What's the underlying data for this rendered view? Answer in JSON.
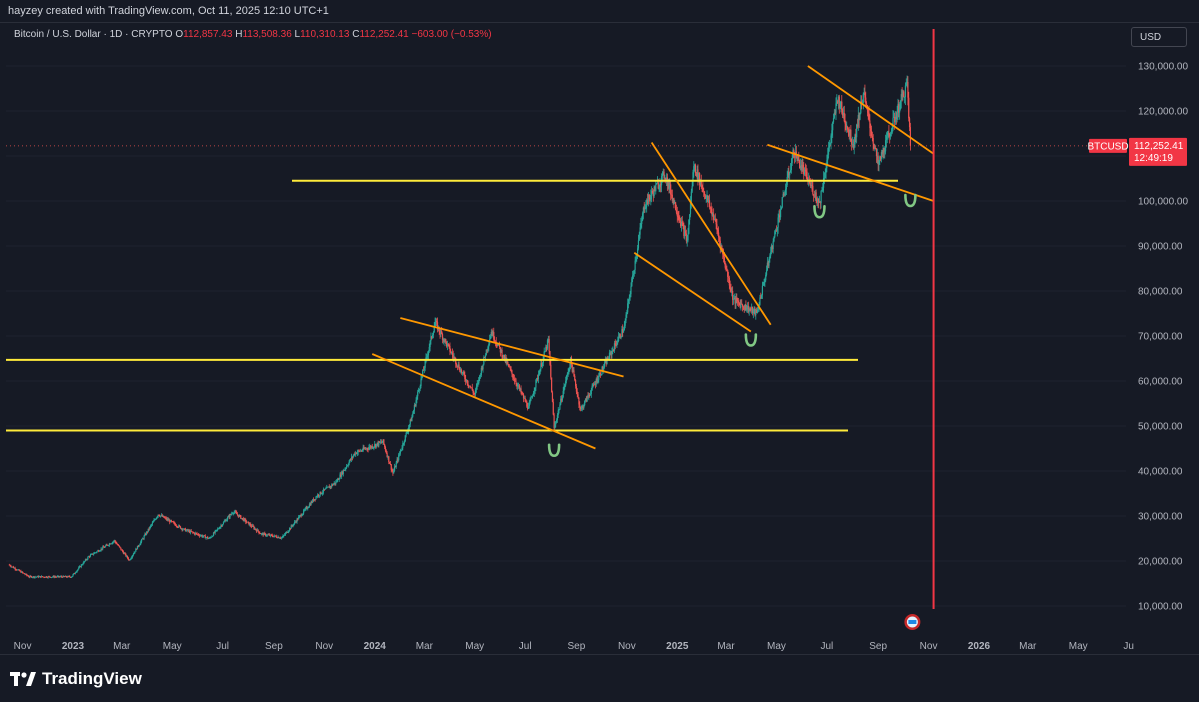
{
  "header": {
    "attribution": "hayzey created with TradingView.com, Oct 11, 2025 12:10 UTC+1"
  },
  "legend": {
    "symbol": "Bitcoin / U.S. Dollar · 1D · CRYPTO",
    "open_key": "O",
    "open": "112,857.43",
    "high_key": "H",
    "high": "113,508.36",
    "low_key": "L",
    "low": "110,310.13",
    "close_key": "C",
    "close": "112,252.41",
    "change": "−603.00 (−0.53%)"
  },
  "currency_button": "USD",
  "price_badge": {
    "ticker": "BTCUSD",
    "price": "112,252.41",
    "countdown": "12:49:19"
  },
  "footer": {
    "brand": "TradingView"
  },
  "colors": {
    "background": "#161a25",
    "up": "#26a69a",
    "down": "#ef5350",
    "support_line": "#ffeb3b",
    "channel_line": "#ff9800",
    "bounce_mark": "#81c784",
    "vertical_marker": "#f23645"
  },
  "chart_data": {
    "type": "candlestick",
    "symbol": "Bitcoin / U.S. Dollar",
    "interval": "1D",
    "y_ticks": [
      "130,000.00",
      "120,000.00",
      "110,000.00",
      "100,000.00",
      "90,000.00",
      "80,000.00",
      "70,000.00",
      "60,000.00",
      "50,000.00",
      "40,000.00",
      "30,000.00",
      "20,000.00",
      "10,000.00"
    ],
    "x_ticks": [
      "Nov",
      "2023",
      "Mar",
      "May",
      "Jul",
      "Sep",
      "Nov",
      "2024",
      "Mar",
      "May",
      "Jul",
      "Sep",
      "Nov",
      "2025",
      "Mar",
      "May",
      "Jul",
      "Sep",
      "Nov",
      "2026",
      "Mar",
      "May",
      "Ju"
    ],
    "ylim": [
      7000,
      135000
    ],
    "last_price": 112252.41,
    "price_path": [
      [
        "2022-10-15",
        19200
      ],
      [
        "2022-11-09",
        16500
      ],
      [
        "2022-12-30",
        16500
      ],
      [
        "2023-01-20",
        21000
      ],
      [
        "2023-02-20",
        24500
      ],
      [
        "2023-03-10",
        20200
      ],
      [
        "2023-04-14",
        30400
      ],
      [
        "2023-05-15",
        27000
      ],
      [
        "2023-06-15",
        25000
      ],
      [
        "2023-07-14",
        31000
      ],
      [
        "2023-08-17",
        26000
      ],
      [
        "2023-09-11",
        25200
      ],
      [
        "2023-10-23",
        34500
      ],
      [
        "2023-11-15",
        37500
      ],
      [
        "2023-12-08",
        44000
      ],
      [
        "2024-01-11",
        46500
      ],
      [
        "2024-01-23",
        39500
      ],
      [
        "2024-02-15",
        52000
      ],
      [
        "2024-03-14",
        73000
      ],
      [
        "2024-04-15",
        62000
      ],
      [
        "2024-05-01",
        57000
      ],
      [
        "2024-05-21",
        71000
      ],
      [
        "2024-07-05",
        54000
      ],
      [
        "2024-07-29",
        69000
      ],
      [
        "2024-08-05",
        49500
      ],
      [
        "2024-08-25",
        64500
      ],
      [
        "2024-09-06",
        53500
      ],
      [
        "2024-10-15",
        67000
      ],
      [
        "2024-10-29",
        72000
      ],
      [
        "2024-11-22",
        99000
      ],
      [
        "2024-12-17",
        106000
      ],
      [
        "2025-01-13",
        91000
      ],
      [
        "2025-01-21",
        108000
      ],
      [
        "2025-02-15",
        96000
      ],
      [
        "2025-03-10",
        78000
      ],
      [
        "2025-04-07",
        75000
      ],
      [
        "2025-05-22",
        111000
      ],
      [
        "2025-06-22",
        99500
      ],
      [
        "2025-07-14",
        123000
      ],
      [
        "2025-08-02",
        112500
      ],
      [
        "2025-08-14",
        124000
      ],
      [
        "2025-09-01",
        108000
      ],
      [
        "2025-10-06",
        126000
      ],
      [
        "2025-10-10",
        112252
      ]
    ],
    "annotations": {
      "horizontal_levels": [
        49000,
        64700,
        104500
      ],
      "channels": [
        {
          "from": [
            "2024-02-01",
            74000
          ],
          "to": [
            "2024-10-28",
            61000
          ]
        },
        {
          "from": [
            "2023-12-29",
            66000
          ],
          "to": [
            "2024-09-24",
            45000
          ]
        },
        {
          "from": [
            "2024-11-10",
            88500
          ],
          "to": [
            "2025-03-31",
            71000
          ]
        },
        {
          "from": [
            "2024-12-01",
            113000
          ],
          "to": [
            "2025-04-24",
            72500
          ]
        },
        {
          "from": [
            "2025-04-20",
            112500
          ],
          "to": [
            "2025-11-07",
            100000
          ]
        },
        {
          "from": [
            "2025-06-08",
            130000
          ],
          "to": [
            "2025-11-07",
            110500
          ]
        }
      ],
      "vertical_marker_date": "2025-11-01",
      "bounce_marks": [
        {
          "date": "2024-08-05",
          "price": 44500
        },
        {
          "date": "2025-03-31",
          "price": 69000
        },
        {
          "date": "2025-06-22",
          "price": 97500
        },
        {
          "date": "2025-10-10",
          "price": 100000
        }
      ]
    }
  }
}
